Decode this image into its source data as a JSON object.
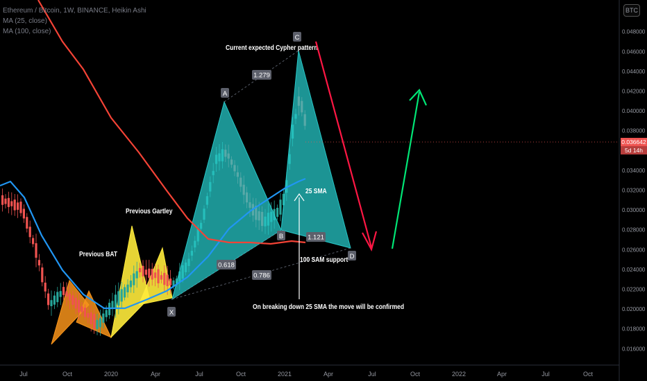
{
  "legend": {
    "symbol_line": "Ethereum / Bitcoin, 1W, BINANCE, Heikin Ashi",
    "ma25": "MA (25, close)",
    "ma100": "MA (100, close)"
  },
  "currency_button": "BTC",
  "last_price": "0.036642",
  "countdown": "5d 14h",
  "colors": {
    "up": "#26a69a",
    "down": "#ef5350",
    "ma25": "#2196f3",
    "ma100": "#f44336",
    "bat": "#f7931a",
    "gartley": "#ffeb3b",
    "cypher": "#26c6c6",
    "arrow_down": "#ff1744",
    "arrow_up": "#00e676"
  },
  "chart_data": {
    "type": "candlestick",
    "ylim": [
      0.0145,
      0.0515
    ],
    "y_ticks": [
      "0.016000",
      "0.018000",
      "0.020000",
      "0.022000",
      "0.024000",
      "0.026000",
      "0.028000",
      "0.030000",
      "0.032000",
      "0.034000",
      "0.036000",
      "0.038000",
      "0.040000",
      "0.042000",
      "0.044000",
      "0.046000",
      "0.048000"
    ],
    "x_ticks": [
      "Jul",
      "Oct",
      "2020",
      "Apr",
      "Jul",
      "Oct",
      "2021",
      "Apr",
      "Jul",
      "Oct",
      "2022",
      "Apr",
      "Jul",
      "Oct"
    ],
    "points": [
      {
        "label": "X",
        "value": 0.0205
      },
      {
        "label": "A",
        "value": 0.0405
      },
      {
        "label": "B",
        "value": 0.0262
      },
      {
        "label": "C",
        "value": 0.0467
      },
      {
        "label": "D",
        "value": 0.026
      }
    ],
    "ratios": [
      "1.279",
      "0.618",
      "0.786",
      "1.121"
    ],
    "annotations": [
      "Current expected Cypher pattern",
      "Previous Gartley",
      "Previous BAT",
      "25 SMA",
      "100 SAM support",
      "On breaking down 25 SMA the move will be confirmed"
    ]
  }
}
